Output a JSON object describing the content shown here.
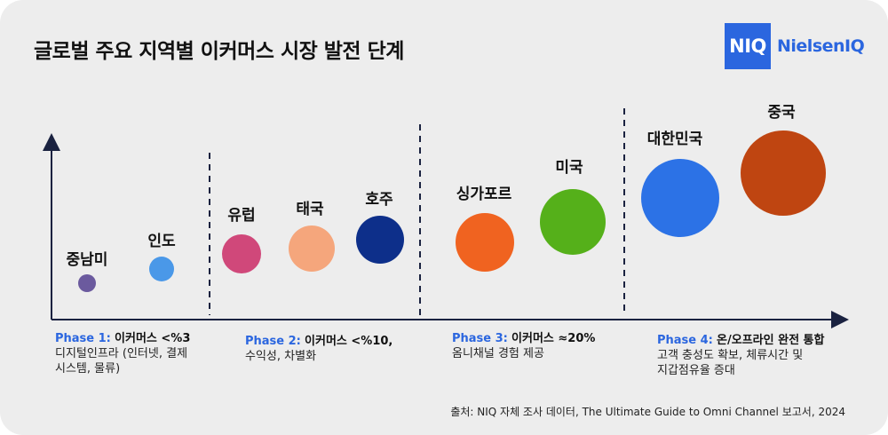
{
  "title": "글로벌 주요 지역별 이커머스 시장 발전 단계",
  "logo": {
    "mark": "NIQ",
    "text": "NielsenIQ",
    "color": "#2b66df"
  },
  "regions": [
    {
      "name": "중남미",
      "color": "#6b5a9e"
    },
    {
      "name": "인도",
      "color": "#4a98e8"
    },
    {
      "name": "유럽",
      "color": "#d0487a"
    },
    {
      "name": "태국",
      "color": "#f5a67c"
    },
    {
      "name": "호주",
      "color": "#0d2f8a"
    },
    {
      "name": "싱가포르",
      "color": "#f06320"
    },
    {
      "name": "미국",
      "color": "#55b01a"
    },
    {
      "name": "대한민국",
      "color": "#2c72e6"
    },
    {
      "name": "중국",
      "color": "#bf4511"
    }
  ],
  "phases": [
    {
      "label": "Phase 1:",
      "headline": "이커머스 <%3",
      "desc_lines": [
        "디지털인프라 (인터넷, 결제",
        "시스템, 물류)"
      ]
    },
    {
      "label": "Phase 2:",
      "headline": "이커머스 <%10,",
      "desc_lines": [
        "수익성, 차별화"
      ]
    },
    {
      "label": "Phase 3:",
      "headline": "이커머스 ≈20%",
      "desc_lines": [
        "옴니채널 경험 제공"
      ]
    },
    {
      "label": "Phase 4:",
      "headline": "온/오프라인 완전 통합",
      "desc_lines": [
        "고객 충성도 확보, 체류시간 및",
        "지갑점유율 증대"
      ]
    }
  ],
  "source": "출처: NIQ 자체 조사 데이터, The Ultimate Guide to Omni Channel 보고서, 2024"
}
